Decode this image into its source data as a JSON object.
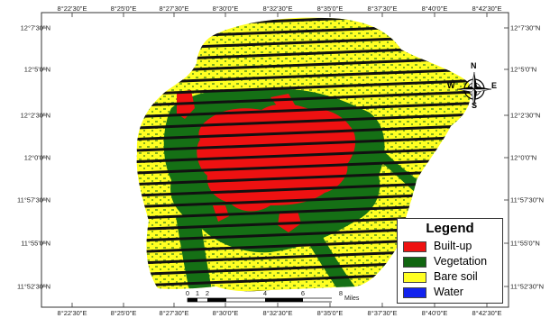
{
  "map": {
    "grid": {
      "lon_labels": [
        "8°22'30\"E",
        "8°25'0\"E",
        "8°27'30\"E",
        "8°30'0\"E",
        "8°32'30\"E",
        "8°35'0\"E",
        "8°37'30\"E",
        "8°40'0\"E",
        "8°42'30\"E"
      ],
      "lat_labels": [
        "12°7'30\"N",
        "12°5'0\"N",
        "12°2'30\"N",
        "12°0'0\"N",
        "11°57'30\"N",
        "11°55'0\"N",
        "11°52'30\"N"
      ]
    },
    "legend": {
      "title": "Legend",
      "items": [
        {
          "label": "Built-up",
          "color": "#ee1111"
        },
        {
          "label": "Vegetation",
          "color": "#116611"
        },
        {
          "label": "Bare soil",
          "color": "#ffff22"
        },
        {
          "label": "Water",
          "color": "#1122ee"
        }
      ]
    },
    "scale_bar": {
      "values": [
        "0",
        "1",
        "2",
        "4",
        "6",
        "8"
      ],
      "unit": "Miles"
    },
    "north_arrow": {
      "n": "N",
      "s": "S",
      "e": "E",
      "w": "W"
    },
    "colors": {
      "built_up": "#ee1111",
      "vegetation": "#116611",
      "bare_soil": "#ffff22",
      "stripe": "#111111"
    }
  }
}
